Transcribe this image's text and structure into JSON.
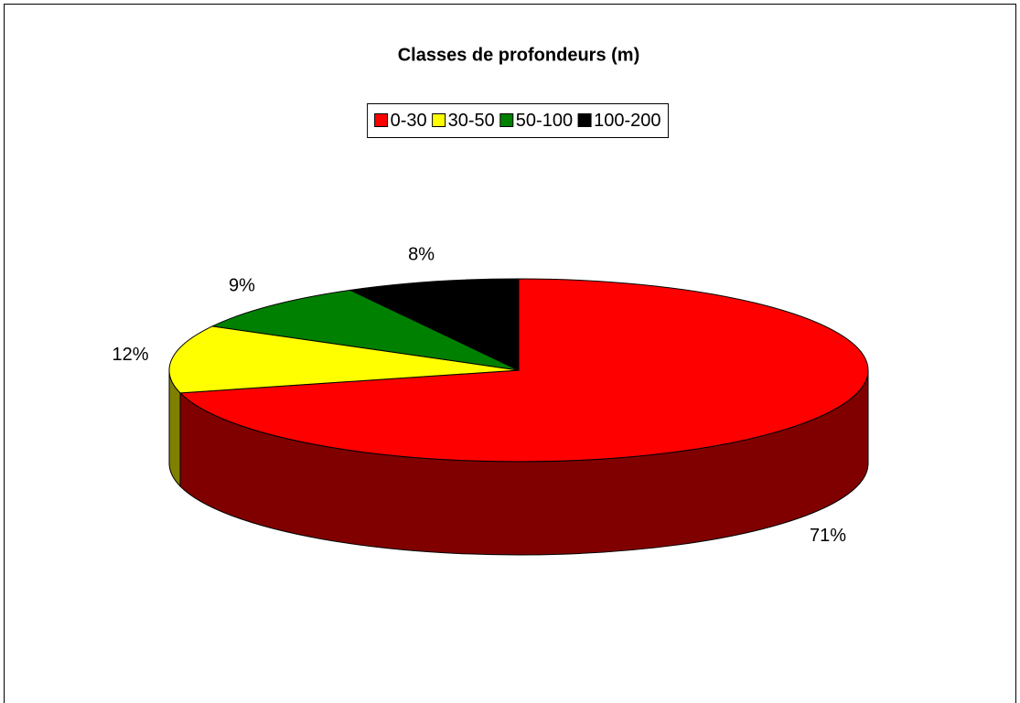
{
  "chart_data": {
    "type": "pie3d",
    "title": "Classes de profondeurs (m)",
    "categories": [
      "0-30",
      "30-50",
      "50-100",
      "100-200"
    ],
    "series": [
      {
        "name": "Classes de profondeurs (m)",
        "values": [
          71,
          12,
          9,
          8
        ],
        "value_labels": [
          "71%",
          "12%",
          "9%",
          "8%"
        ],
        "colors": [
          "#ff0000",
          "#ffff00",
          "#008000",
          "#000000"
        ]
      }
    ],
    "legend": "top"
  }
}
